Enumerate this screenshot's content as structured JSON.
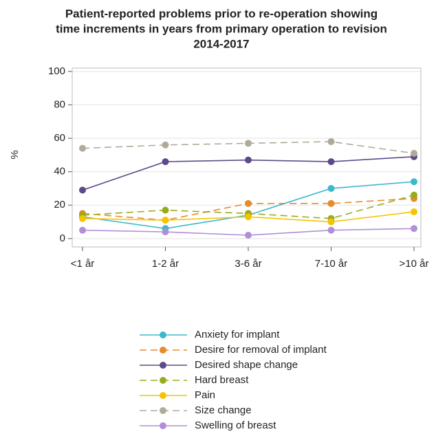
{
  "chart_data": {
    "type": "line",
    "title": [
      "Patient-reported problems prior to re-operation showing",
      "time increments in years from primary operation to revision",
      "2014-2017"
    ],
    "y_label": "%",
    "categories": [
      "<1 år",
      "1-2 år",
      "3-6 år",
      "7-10 år",
      ">10 år"
    ],
    "ylim": [
      -5,
      102
    ],
    "yticks": [
      0,
      20,
      40,
      60,
      80,
      100
    ],
    "grid": true,
    "legend": "bottom",
    "series": [
      {
        "name": "Anxiety for implant",
        "color": "#3bb8cc",
        "dashed": false,
        "values": [
          13,
          6,
          14,
          30,
          34
        ]
      },
      {
        "name": "Desire for removal of implant",
        "color": "#e8892a",
        "dashed": true,
        "values": [
          15,
          11,
          21,
          21,
          24
        ]
      },
      {
        "name": "Desired shape change",
        "color": "#5c4a8a",
        "dashed": false,
        "values": [
          29,
          46,
          47,
          46,
          49
        ]
      },
      {
        "name": "Hard breast",
        "color": "#9aab1a",
        "dashed": true,
        "values": [
          14,
          17,
          15,
          12,
          26
        ]
      },
      {
        "name": "Pain",
        "color": "#f5c400",
        "dashed": false,
        "values": [
          12,
          11,
          13,
          10,
          16
        ]
      },
      {
        "name": "Size change",
        "color": "#b0aa98",
        "dashed": true,
        "values": [
          54,
          56,
          57,
          58,
          51
        ]
      },
      {
        "name": "Swelling of breast",
        "color": "#b08fd8",
        "dashed": false,
        "values": [
          5,
          4,
          2,
          5,
          6
        ]
      }
    ]
  }
}
